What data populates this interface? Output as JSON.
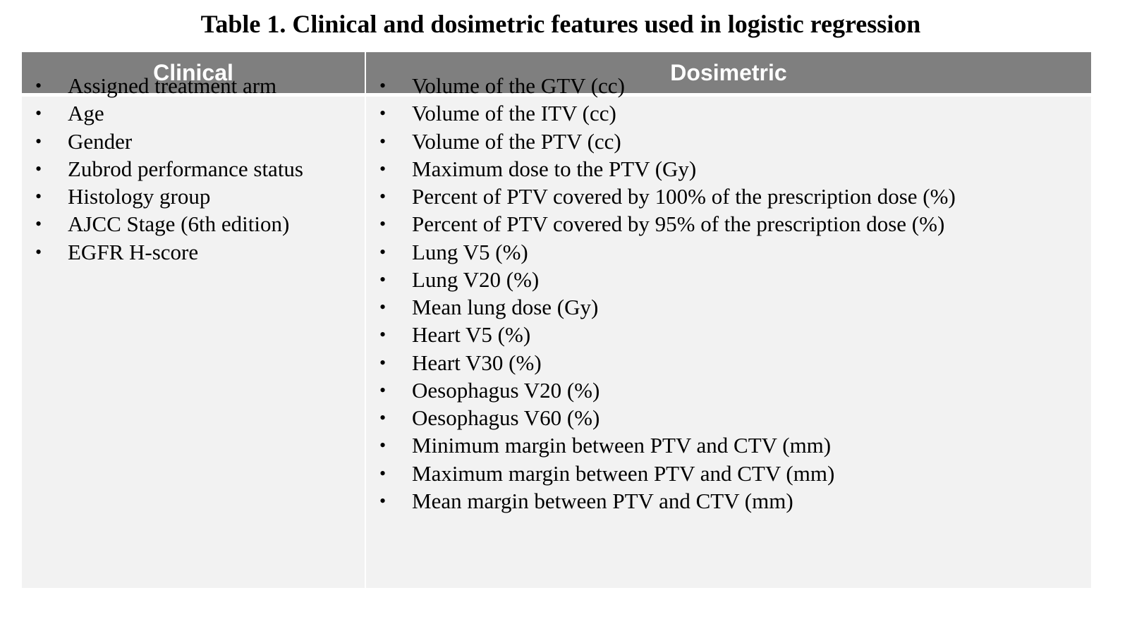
{
  "title": "Table 1. Clinical and dosimetric features used in logistic regression",
  "table": {
    "headers": {
      "clinical": "Clinical",
      "dosimetric": "Dosimetric"
    },
    "bullet_symbol": "•",
    "clinical_items": [
      "Assigned treatment arm",
      "Age",
      "Gender",
      "Zubrod performance status",
      "Histology group",
      "AJCC Stage (6th edition)",
      "EGFR H-score"
    ],
    "dosimetric_items": [
      "Volume of the GTV (cc)",
      "Volume of the ITV (cc)",
      "Volume of the PTV (cc)",
      "Maximum dose to the PTV (Gy)",
      "Percent of PTV covered by 100% of the prescription dose (%)",
      "Percent of PTV covered by 95% of the prescription dose (%)",
      "Lung V5 (%)",
      "Lung V20 (%)",
      "Mean lung dose (Gy)",
      "Heart V5 (%)",
      "Heart V30 (%)",
      "Oesophagus V20 (%)",
      "Oesophagus V60 (%)",
      "Minimum margin between PTV and CTV (mm)",
      "Maximum margin between PTV and CTV (mm)",
      "Mean margin between PTV and CTV (mm)"
    ]
  },
  "colors": {
    "header_bg": "#7f7f7f",
    "header_text": "#ffffff",
    "body_bg": "#f2f2f2",
    "text": "#000000"
  }
}
